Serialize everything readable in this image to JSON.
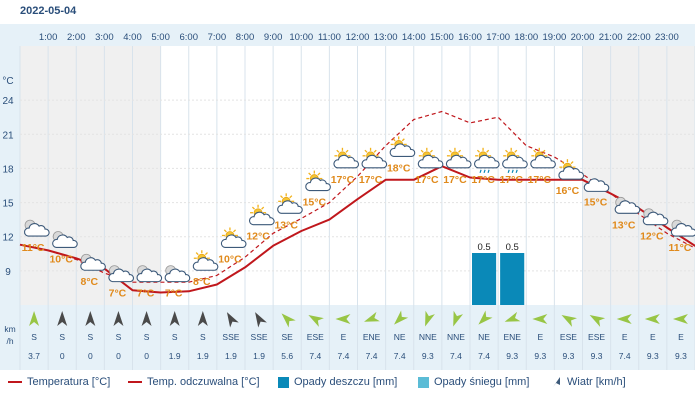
{
  "date": "2022-05-04",
  "colors": {
    "temp": "#c0171c",
    "feels": "#c0171c",
    "rain": "#0a89b8",
    "snow": "#5bbcd6",
    "wind": "#3d5a7a",
    "label": "#e08a1c",
    "night_bg": "#f0f0f0",
    "day_bg": "#ffffff",
    "header_bg": "#e6f1f8"
  },
  "chart_data": {
    "type": "line",
    "hours": [
      "1:00",
      "2:00",
      "3:00",
      "4:00",
      "5:00",
      "6:00",
      "7:00",
      "8:00",
      "9:00",
      "10:00",
      "11:00",
      "12:00",
      "13:00",
      "14:00",
      "15:00",
      "16:00",
      "17:00",
      "18:00",
      "19:00",
      "20:00",
      "21:00",
      "22:00",
      "23:00"
    ],
    "temp_axis_unit": "°C",
    "y_ticks": [
      9,
      12,
      15,
      18,
      21,
      24
    ],
    "y_range": [
      6,
      27
    ],
    "series": [
      {
        "name": "Temperatura [°C]",
        "style": "solid",
        "points": [
          [
            0,
            11.3
          ],
          [
            1,
            10.8
          ],
          [
            2,
            10.1
          ],
          [
            3,
            9.2
          ],
          [
            4,
            7.3
          ],
          [
            5,
            7.1
          ],
          [
            6,
            7.2
          ],
          [
            7,
            7.8
          ],
          [
            8,
            9.3
          ],
          [
            9,
            11.2
          ],
          [
            10,
            12.5
          ],
          [
            11,
            13.5
          ],
          [
            12,
            15.3
          ],
          [
            13,
            17.0
          ],
          [
            14,
            17.0
          ],
          [
            15,
            18.2
          ],
          [
            16,
            17.2
          ],
          [
            17,
            17.0
          ],
          [
            18,
            17.0
          ],
          [
            19,
            17.0
          ],
          [
            20,
            17.0
          ],
          [
            21,
            15.8
          ],
          [
            22,
            14.5
          ],
          [
            23,
            12.8
          ],
          [
            24,
            11.2
          ],
          [
            25,
            10.5
          ],
          [
            26,
            10.0
          ]
        ]
      },
      {
        "name": "Temp. odczuwalna [°C]",
        "style": "dashed",
        "points": [
          [
            0,
            11.3
          ],
          [
            1,
            10.8
          ],
          [
            2,
            10.0
          ],
          [
            3,
            8.8
          ],
          [
            4,
            8.0
          ],
          [
            5,
            8.0
          ],
          [
            6,
            8.0
          ],
          [
            7,
            8.6
          ],
          [
            8,
            10.2
          ],
          [
            9,
            12.3
          ],
          [
            10,
            13.6
          ],
          [
            11,
            15.0
          ],
          [
            12,
            17.3
          ],
          [
            13,
            20.0
          ],
          [
            14,
            22.3
          ],
          [
            15,
            23.0
          ],
          [
            16,
            22.0
          ],
          [
            17,
            22.5
          ],
          [
            18,
            20.0
          ],
          [
            19,
            19.0
          ],
          [
            20,
            17.5
          ],
          [
            21,
            15.8
          ],
          [
            22,
            14.0
          ],
          [
            23,
            12.3
          ],
          [
            24,
            11.0
          ],
          [
            25,
            10.2
          ],
          [
            26,
            9.5
          ]
        ]
      }
    ],
    "temp_labels": [
      "11°C",
      "10°C",
      "8°C",
      "7°C",
      "7°C",
      "7°C",
      "8°C",
      "10°C",
      "12°C",
      "13°C",
      "15°C",
      "17°C",
      "17°C",
      "18°C",
      "17°C",
      "17°C",
      "17°C",
      "17°C",
      "17°C",
      "16°C",
      "15°C",
      "13°C",
      "12°C",
      "11°C"
    ],
    "temp_label_values": [
      11,
      10,
      8,
      7,
      7,
      7,
      8,
      10,
      12,
      13,
      15,
      17,
      17,
      18,
      17,
      17,
      17,
      17,
      17,
      16,
      15,
      13,
      12,
      11
    ],
    "icons": [
      "night-cloudy",
      "night-cloudy",
      "night-cloudy",
      "night-cloudy",
      "night-cloudy",
      "night-cloudy",
      "sun-cloud",
      "sun-cloud",
      "sun-cloud",
      "sun-cloud",
      "sun-cloud",
      "sun-cloud",
      "sun-cloud",
      "sun-cloud",
      "sun-cloud",
      "sun-cloud",
      "sun-rain",
      "sun-rain",
      "sun-cloud",
      "sun-cloud",
      "cloud",
      "night-cloudy",
      "night-cloudy",
      "night-cloudy"
    ],
    "precip": {
      "unit": "mm",
      "values": [
        0,
        0,
        0,
        0,
        0,
        0,
        0,
        0,
        0,
        0,
        0,
        0,
        0,
        0,
        0,
        0,
        0.5,
        0.5,
        0,
        0,
        0,
        0,
        0,
        0
      ],
      "labels": [
        "",
        "",
        "",
        "",
        "",
        "",
        "",
        "",
        "",
        "",
        "",
        "",
        "",
        "",
        "",
        "",
        "0.5",
        "0.5",
        "",
        "",
        "",
        "",
        "",
        ""
      ]
    },
    "wind": {
      "unit_label_1": "km",
      "unit_label_2": "/h",
      "directions": [
        "S",
        "S",
        "S",
        "S",
        "S",
        "S",
        "S",
        "SSE",
        "SSE",
        "SE",
        "ESE",
        "E",
        "ENE",
        "NE",
        "NNE",
        "NNE",
        "NE",
        "ENE",
        "E",
        "ESE",
        "ESE",
        "E",
        "E",
        "E"
      ],
      "speeds": [
        "3.7",
        "0",
        "0",
        "0",
        "0",
        "1.9",
        "1.9",
        "1.9",
        "1.9",
        "5.6",
        "7.4",
        "7.4",
        "7.4",
        "7.4",
        "9.3",
        "7.4",
        "7.4",
        "9.3",
        "9.3",
        "9.3",
        "9.3",
        "7.4",
        "9.3",
        "9.3"
      ],
      "speed_values": [
        3.7,
        0,
        0,
        0,
        0,
        1.9,
        1.9,
        1.9,
        1.9,
        5.6,
        7.4,
        7.4,
        7.4,
        7.4,
        9.3,
        7.4,
        7.4,
        9.3,
        9.3,
        9.3,
        9.3,
        7.4,
        9.3,
        9.3
      ],
      "arrow_angles": [
        0,
        0,
        0,
        0,
        0,
        0,
        0,
        -30,
        -30,
        -45,
        -60,
        -90,
        -110,
        -135,
        -160,
        -160,
        -135,
        -110,
        -90,
        -60,
        -60,
        -90,
        -90,
        -90
      ],
      "arrow_fill": [
        "#98c545",
        "#4a4a4a",
        "#4a4a4a",
        "#4a4a4a",
        "#4a4a4a",
        "#4a4a4a",
        "#4a4a4a",
        "#4a4a4a",
        "#4a4a4a",
        "#98c545",
        "#98c545",
        "#98c545",
        "#98c545",
        "#98c545",
        "#98c545",
        "#98c545",
        "#98c545",
        "#98c545",
        "#98c545",
        "#98c545",
        "#98c545",
        "#98c545",
        "#98c545",
        "#98c545"
      ]
    },
    "night_columns": [
      0,
      1,
      2,
      3,
      4,
      20,
      21,
      22,
      23
    ]
  },
  "legend": {
    "temp": "Temperatura [°C]",
    "feels": "Temp. odczuwalna [°C]",
    "rain": "Opady deszczu [mm]",
    "snow": "Opady śniegu [mm]",
    "wind": "Wiatr [km/h]"
  }
}
